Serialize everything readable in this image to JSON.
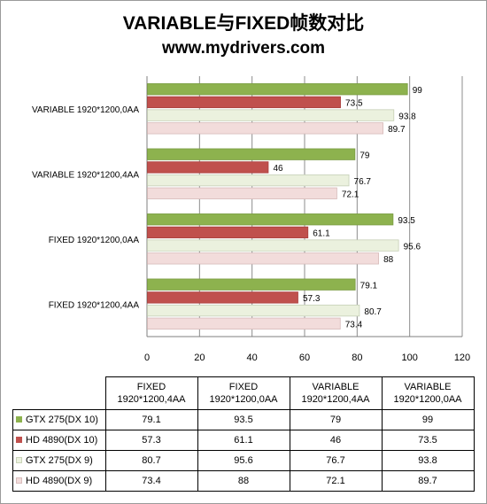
{
  "title": "VARIABLE与FIXED帧数对比",
  "subtitle": "www.mydrivers.com",
  "colors": {
    "gtx275_dx10": "#8db24e",
    "hd4890_dx10": "#c0504d",
    "gtx275_dx9": "#ebf1de",
    "hd4890_dx9": "#f2dcdb"
  },
  "chart_data": {
    "type": "bar",
    "orientation": "horizontal",
    "categories": [
      "VARIABLE 1920*1200,0AA",
      "VARIABLE 1920*1200,4AA",
      "FIXED 1920*1200,0AA",
      "FIXED 1920*1200,4AA"
    ],
    "series": [
      {
        "name": "GTX 275(DX 10)",
        "values": [
          99,
          79,
          93.5,
          79.1
        ]
      },
      {
        "name": "HD 4890(DX 10)",
        "values": [
          73.5,
          46,
          61.1,
          57.3
        ]
      },
      {
        "name": "GTX 275(DX 9)",
        "values": [
          93.8,
          76.7,
          95.6,
          80.7
        ]
      },
      {
        "name": "HD 4890(DX 9)",
        "values": [
          89.7,
          72.1,
          88,
          73.4
        ]
      }
    ],
    "xlim": [
      0,
      120
    ],
    "xticks": [
      "0",
      "20",
      "40",
      "60",
      "80",
      "100",
      "120"
    ],
    "grid": true,
    "legend": "data table below"
  },
  "table": {
    "columns": [
      [
        "FIXED",
        "1920*1200,4AA"
      ],
      [
        "FIXED",
        "1920*1200,0AA"
      ],
      [
        "VARIABLE",
        "1920*1200,4AA"
      ],
      [
        "VARIABLE",
        "1920*1200,0AA"
      ]
    ],
    "rows": [
      {
        "label": "GTX 275(DX 10)",
        "values": [
          "79.1",
          "93.5",
          "79",
          "99"
        ]
      },
      {
        "label": "HD 4890(DX 10)",
        "values": [
          "57.3",
          "61.1",
          "46",
          "73.5"
        ]
      },
      {
        "label": "GTX 275(DX 9)",
        "values": [
          "80.7",
          "95.6",
          "76.7",
          "93.8"
        ]
      },
      {
        "label": "HD 4890(DX 9)",
        "values": [
          "73.4",
          "88",
          "72.1",
          "89.7"
        ]
      }
    ]
  }
}
